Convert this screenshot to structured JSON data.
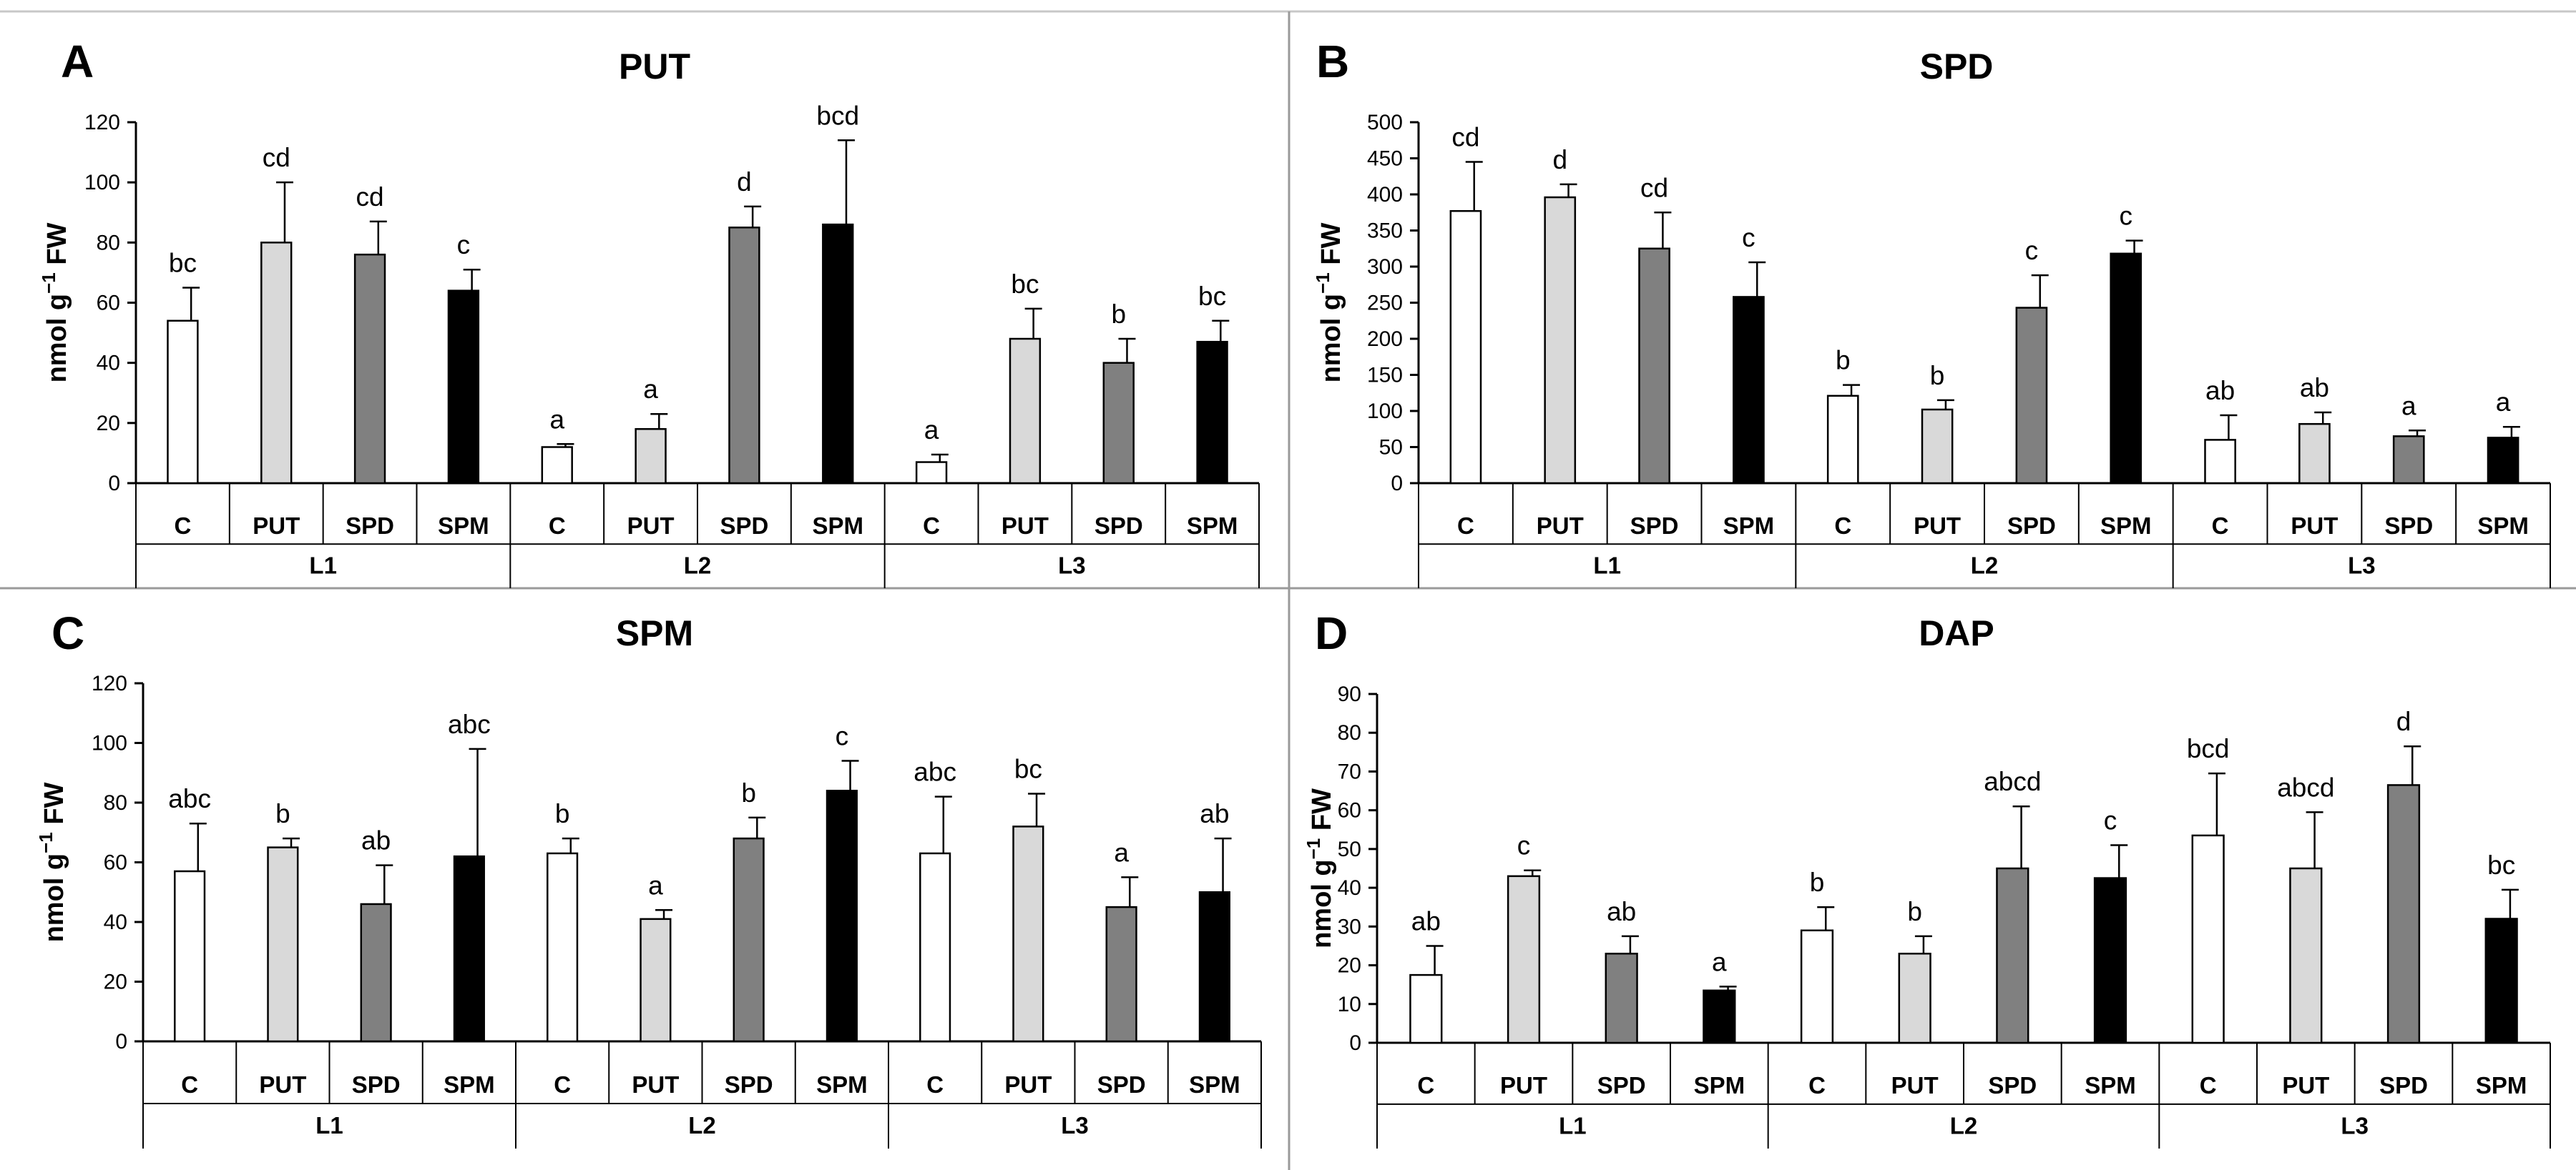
{
  "figure": {
    "panel_border": "#808080",
    "ylabel_unit": "nmol g⁻¹ FW"
  },
  "colors": {
    "C": "#ffffff",
    "PUT": "#d9d9d9",
    "SPD": "#808080",
    "SPM": "#000000",
    "axis": "#000000"
  },
  "chart_data": [
    {
      "type": "bar",
      "panel_label": "A",
      "title": "PUT",
      "ylabel": "nmol g",
      "ylabel_sup": "−1",
      "ylabel_suffix": " FW",
      "ylim": [
        0,
        120
      ],
      "yticks": [
        0,
        20,
        40,
        60,
        80,
        100,
        120
      ],
      "groups": [
        "L1",
        "L2",
        "L3"
      ],
      "categories": [
        "C",
        "PUT",
        "SPD",
        "SPM"
      ],
      "series": [
        {
          "group": "L1",
          "values": [
            54,
            80,
            76,
            64
          ],
          "errors": [
            11,
            20,
            11,
            7
          ],
          "letters": [
            "bc",
            "cd",
            "cd",
            "c"
          ]
        },
        {
          "group": "L2",
          "values": [
            12,
            18,
            85,
            86
          ],
          "errors": [
            1,
            5,
            7,
            28
          ],
          "letters": [
            "a",
            "a",
            "d",
            "bcd"
          ]
        },
        {
          "group": "L3",
          "values": [
            7,
            48,
            40,
            47
          ],
          "errors": [
            2.5,
            10,
            8,
            7
          ],
          "letters": [
            "a",
            "bc",
            "b",
            "bc"
          ]
        }
      ]
    },
    {
      "type": "bar",
      "panel_label": "B",
      "title": "SPD",
      "ylabel": "nmol g",
      "ylabel_sup": "−1",
      "ylabel_suffix": " FW",
      "ylim": [
        0,
        500
      ],
      "yticks": [
        0,
        50,
        100,
        150,
        200,
        250,
        300,
        350,
        400,
        450,
        500
      ],
      "groups": [
        "L1",
        "L2",
        "L3"
      ],
      "categories": [
        "C",
        "PUT",
        "SPD",
        "SPM"
      ],
      "series": [
        {
          "group": "L1",
          "values": [
            377,
            396,
            325,
            258
          ],
          "errors": [
            68,
            18,
            50,
            48
          ],
          "letters": [
            "cd",
            "d",
            "cd",
            "c"
          ]
        },
        {
          "group": "L2",
          "values": [
            121,
            102,
            243,
            318
          ],
          "errors": [
            15,
            13,
            45,
            18
          ],
          "letters": [
            "b",
            "b",
            "c",
            "c"
          ]
        },
        {
          "group": "L3",
          "values": [
            60,
            82,
            65,
            63
          ],
          "errors": [
            34,
            16,
            8,
            15
          ],
          "letters": [
            "ab",
            "ab",
            "a",
            "a"
          ]
        }
      ]
    },
    {
      "type": "bar",
      "panel_label": "C",
      "title": "SPM",
      "ylabel": "nmol g",
      "ylabel_sup": "−1",
      "ylabel_suffix": " FW",
      "ylim": [
        0,
        120
      ],
      "yticks": [
        0,
        20,
        40,
        60,
        80,
        100,
        120
      ],
      "groups": [
        "L1",
        "L2",
        "L3"
      ],
      "categories": [
        "C",
        "PUT",
        "SPD",
        "SPM"
      ],
      "series": [
        {
          "group": "L1",
          "values": [
            57,
            65,
            46,
            62
          ],
          "errors": [
            16,
            3,
            13,
            36
          ],
          "letters": [
            "abc",
            "b",
            "ab",
            "abc"
          ]
        },
        {
          "group": "L2",
          "values": [
            63,
            41,
            68,
            84
          ],
          "errors": [
            5,
            3,
            7,
            10
          ],
          "letters": [
            "b",
            "a",
            "b",
            "c"
          ]
        },
        {
          "group": "L3",
          "values": [
            63,
            72,
            45,
            50
          ],
          "errors": [
            19,
            11,
            10,
            18
          ],
          "letters": [
            "abc",
            "bc",
            "a",
            "ab"
          ]
        }
      ]
    },
    {
      "type": "bar",
      "panel_label": "D",
      "title": "DAP",
      "ylabel": "nmol g",
      "ylabel_sup": "−1",
      "ylabel_suffix": " FW",
      "ylim": [
        0,
        90
      ],
      "yticks": [
        0,
        10,
        20,
        30,
        40,
        50,
        60,
        70,
        80,
        90
      ],
      "groups": [
        "L1",
        "L2",
        "L3"
      ],
      "categories": [
        "C",
        "PUT",
        "SPD",
        "SPM"
      ],
      "series": [
        {
          "group": "L1",
          "values": [
            17.5,
            43,
            23,
            13.5
          ],
          "errors": [
            7.5,
            1.5,
            4.5,
            1
          ],
          "letters": [
            "ab",
            "c",
            "ab",
            "a"
          ]
        },
        {
          "group": "L2",
          "values": [
            29,
            23,
            45,
            42.5
          ],
          "errors": [
            6,
            4.5,
            16,
            8.5
          ],
          "letters": [
            "b",
            "b",
            "abcd",
            "c"
          ]
        },
        {
          "group": "L3",
          "values": [
            53.5,
            45,
            66.5,
            32
          ],
          "errors": [
            16,
            14.5,
            10,
            7.5
          ],
          "letters": [
            "bcd",
            "abcd",
            "d",
            "bc"
          ]
        }
      ]
    }
  ]
}
